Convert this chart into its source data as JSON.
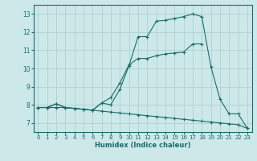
{
  "xlabel": "Humidex (Indice chaleur)",
  "bg_color": "#cce8e8",
  "grid_color": "#aacccc",
  "line_color": "#1a6b6b",
  "xlim": [
    -0.5,
    23.5
  ],
  "ylim": [
    6.5,
    13.5
  ],
  "xticks": [
    0,
    1,
    2,
    3,
    4,
    5,
    6,
    7,
    8,
    9,
    10,
    11,
    12,
    13,
    14,
    15,
    16,
    17,
    18,
    19,
    20,
    21,
    22,
    23
  ],
  "yticks": [
    7,
    8,
    9,
    10,
    11,
    12,
    13
  ],
  "line1_x": [
    0,
    1,
    2,
    3,
    4,
    5,
    6,
    7,
    8,
    9,
    10,
    11,
    12,
    13,
    14,
    15,
    16,
    17,
    18,
    19,
    20,
    21,
    22,
    23
  ],
  "line1_y": [
    7.85,
    7.85,
    8.05,
    7.85,
    7.8,
    7.75,
    7.7,
    8.1,
    8.0,
    8.85,
    10.15,
    11.75,
    11.75,
    12.6,
    12.65,
    12.75,
    12.85,
    13.0,
    12.85,
    10.1,
    8.3,
    7.5,
    7.5,
    6.7
  ],
  "line2_x": [
    0,
    1,
    2,
    3,
    4,
    5,
    6,
    7,
    8,
    9,
    10,
    11,
    12,
    13,
    14,
    15,
    16,
    17,
    18
  ],
  "line2_y": [
    7.85,
    7.85,
    8.05,
    7.85,
    7.8,
    7.75,
    7.7,
    8.1,
    8.4,
    9.2,
    10.2,
    10.55,
    10.55,
    10.7,
    10.8,
    10.85,
    10.9,
    11.35,
    11.35
  ],
  "line3_x": [
    0,
    1,
    2,
    3,
    4,
    5,
    6,
    7,
    8,
    9,
    10,
    11,
    12,
    13,
    14,
    15,
    16,
    17,
    18,
    19,
    20,
    21,
    22,
    23
  ],
  "line3_y": [
    7.85,
    7.85,
    7.85,
    7.85,
    7.8,
    7.75,
    7.7,
    7.65,
    7.6,
    7.55,
    7.5,
    7.45,
    7.4,
    7.35,
    7.3,
    7.25,
    7.2,
    7.15,
    7.1,
    7.05,
    7.0,
    6.95,
    6.9,
    6.7
  ]
}
